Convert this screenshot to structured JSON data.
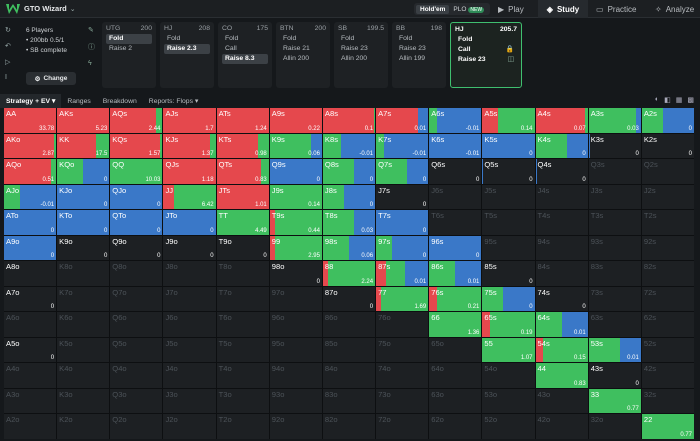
{
  "app": {
    "brand": "GTO Wizard",
    "game_options": [
      {
        "label": "Hold'em"
      },
      {
        "label": "PLO",
        "badge": "NEW"
      }
    ]
  },
  "nav": [
    {
      "label": "Play",
      "icon": "play-icon"
    },
    {
      "label": "Study",
      "icon": "study-icon"
    },
    {
      "label": "Practice",
      "icon": "practice-icon"
    },
    {
      "label": "Analyze",
      "icon": "analyze-icon"
    }
  ],
  "game_info": {
    "players": "6 Players",
    "stack": "• 200bb 0.5/1",
    "status": "• SB complete",
    "change": "Change"
  },
  "positions": [
    {
      "pos": "UTG",
      "stack": "200",
      "actions": [
        {
          "label": "Fold",
          "selected": true
        },
        {
          "label": "Raise 2",
          "selected": false
        }
      ]
    },
    {
      "pos": "HJ",
      "stack": "208",
      "actions": [
        {
          "label": "Fold",
          "selected": false
        },
        {
          "label": "Raise 2.3",
          "selected": true
        }
      ]
    },
    {
      "pos": "CO",
      "stack": "175",
      "actions": [
        {
          "label": "Fold",
          "selected": false
        },
        {
          "label": "Call",
          "selected": false
        },
        {
          "label": "Raise 8.3",
          "selected": true
        }
      ]
    },
    {
      "pos": "BTN",
      "stack": "200",
      "actions": [
        {
          "label": "Fold",
          "selected": false
        },
        {
          "label": "Raise 21",
          "selected": false
        },
        {
          "label": "Allin 200",
          "selected": false
        }
      ]
    },
    {
      "pos": "SB",
      "stack": "199.5",
      "actions": [
        {
          "label": "Fold",
          "selected": false
        },
        {
          "label": "Raise 23",
          "selected": false
        },
        {
          "label": "Allin 200",
          "selected": false
        }
      ]
    },
    {
      "pos": "BB",
      "stack": "198",
      "actions": [
        {
          "label": "Fold",
          "selected": false
        },
        {
          "label": "Raise 23",
          "selected": false
        },
        {
          "label": "Allin 199",
          "selected": false
        }
      ]
    },
    {
      "pos": "HJ",
      "stack": "205.7",
      "actions": [
        {
          "label": "Fold",
          "selected": false
        },
        {
          "label": "Call",
          "selected": false
        },
        {
          "label": "Raise 23",
          "selected": false
        }
      ]
    }
  ],
  "toolbar": {
    "tabs": [
      "Strategy + EV",
      "Ranges",
      "Breakdown",
      "Reports: Flops"
    ]
  },
  "colors": {
    "raise": "#e5484d",
    "call": "#3fbf5f",
    "fold": "#3a78c8",
    "bg": "#1d2023"
  },
  "matrix": [
    [
      {
        "h": "AA",
        "v": "33.78",
        "m": [
          1,
          0,
          0
        ]
      },
      {
        "h": "AKs",
        "v": "5.23",
        "m": [
          1,
          0,
          0
        ]
      },
      {
        "h": "AQs",
        "v": "2.44",
        "m": [
          0.88,
          0.12,
          0
        ]
      },
      {
        "h": "AJs",
        "v": "1.7",
        "m": [
          1,
          0,
          0
        ]
      },
      {
        "h": "ATs",
        "v": "1.24",
        "m": [
          1,
          0,
          0
        ]
      },
      {
        "h": "A9s",
        "v": "0.22",
        "m": [
          1,
          0,
          0
        ]
      },
      {
        "h": "A8s",
        "v": "0.1",
        "m": [
          0.98,
          0.02,
          0
        ]
      },
      {
        "h": "A7s",
        "v": "0.01",
        "m": [
          0.8,
          0,
          0.2
        ]
      },
      {
        "h": "A6s",
        "v": "-0.01",
        "m": [
          0,
          0.15,
          0.85
        ]
      },
      {
        "h": "A5s",
        "v": "0.14",
        "m": [
          0.3,
          0.7,
          0
        ]
      },
      {
        "h": "A4s",
        "v": "0.07",
        "m": [
          0.95,
          0.05,
          0
        ]
      },
      {
        "h": "A3s",
        "v": "0.03",
        "m": [
          0,
          0.9,
          0.1
        ]
      },
      {
        "h": "A2s",
        "v": "0",
        "m": [
          0,
          0.4,
          0.6
        ]
      }
    ],
    [
      {
        "h": "AKo",
        "v": "2.87",
        "m": [
          0.95,
          0.05,
          0
        ]
      },
      {
        "h": "KK",
        "v": "17.5",
        "m": [
          0.75,
          0.25,
          0
        ]
      },
      {
        "h": "KQs",
        "v": "1.57",
        "m": [
          0.95,
          0.05,
          0
        ]
      },
      {
        "h": "KJs",
        "v": "1.37",
        "m": [
          0.9,
          0.1,
          0
        ]
      },
      {
        "h": "KTs",
        "v": "0.98",
        "m": [
          0.8,
          0.2,
          0
        ]
      },
      {
        "h": "K9s",
        "v": "0.06",
        "m": [
          0,
          0.8,
          0.2
        ]
      },
      {
        "h": "K8s",
        "v": "-0.01",
        "m": [
          0,
          0.35,
          0.65
        ]
      },
      {
        "h": "K7s",
        "v": "-0.01",
        "m": [
          0,
          0.15,
          0.85
        ]
      },
      {
        "h": "K6s",
        "v": "-0.01",
        "m": [
          0,
          0,
          1
        ]
      },
      {
        "h": "K5s",
        "v": "0",
        "m": [
          0,
          0,
          1
        ]
      },
      {
        "h": "K4s",
        "v": "0",
        "m": [
          0,
          0.6,
          0.4
        ]
      },
      {
        "h": "K3s",
        "v": "0",
        "m": [
          0,
          0,
          0.02
        ]
      },
      {
        "h": "K2s",
        "v": "0",
        "m": [
          0,
          0,
          0
        ]
      }
    ],
    [
      {
        "h": "AQo",
        "v": "0.51",
        "m": [
          0.9,
          0.1,
          0
        ]
      },
      {
        "h": "KQo",
        "v": "0",
        "m": [
          0,
          0.5,
          0.5
        ]
      },
      {
        "h": "QQ",
        "v": "10.03",
        "m": [
          0,
          1,
          0
        ]
      },
      {
        "h": "QJs",
        "v": "1.18",
        "m": [
          1,
          0,
          0
        ]
      },
      {
        "h": "QTs",
        "v": "0.83",
        "m": [
          0.85,
          0.15,
          0
        ]
      },
      {
        "h": "Q9s",
        "v": "0",
        "m": [
          0,
          0,
          1
        ]
      },
      {
        "h": "Q8s",
        "v": "0",
        "m": [
          0,
          0.6,
          0.4
        ]
      },
      {
        "h": "Q7s",
        "v": "0",
        "m": [
          0,
          0.6,
          0.4
        ]
      },
      {
        "h": "Q6s",
        "v": "0",
        "m": [
          0,
          0,
          0
        ]
      },
      {
        "h": "Q5s",
        "v": "0",
        "m": [
          0,
          0,
          0.02
        ]
      },
      {
        "h": "Q4s",
        "v": "0",
        "m": [
          0,
          0,
          0.02
        ]
      },
      {
        "h": "Q3s",
        "v": "",
        "m": null
      },
      {
        "h": "Q2s",
        "v": "",
        "m": null
      }
    ],
    [
      {
        "h": "AJo",
        "v": "-0.01",
        "m": [
          0,
          0.3,
          0.7
        ]
      },
      {
        "h": "KJo",
        "v": "0",
        "m": [
          0,
          0,
          1
        ]
      },
      {
        "h": "QJo",
        "v": "0",
        "m": [
          0,
          0,
          1
        ]
      },
      {
        "h": "JJ",
        "v": "6.42",
        "m": [
          0.2,
          0.8,
          0
        ]
      },
      {
        "h": "JTs",
        "v": "1.01",
        "m": [
          1,
          0,
          0
        ]
      },
      {
        "h": "J9s",
        "v": "0.14",
        "m": [
          0,
          1,
          0
        ]
      },
      {
        "h": "J8s",
        "v": "0",
        "m": [
          0,
          0.4,
          0.6
        ]
      },
      {
        "h": "J7s",
        "v": "0",
        "m": [
          0,
          0,
          0
        ]
      },
      {
        "h": "J6s",
        "v": "",
        "m": null
      },
      {
        "h": "J5s",
        "v": "",
        "m": null
      },
      {
        "h": "J4s",
        "v": "",
        "m": null
      },
      {
        "h": "J3s",
        "v": "",
        "m": null
      },
      {
        "h": "J2s",
        "v": "",
        "m": null
      }
    ],
    [
      {
        "h": "ATo",
        "v": "0",
        "m": [
          0,
          0,
          1
        ]
      },
      {
        "h": "KTo",
        "v": "0",
        "m": [
          0,
          0,
          1
        ]
      },
      {
        "h": "QTo",
        "v": "0",
        "m": [
          0,
          0,
          1
        ]
      },
      {
        "h": "JTo",
        "v": "0",
        "m": [
          0,
          0,
          1
        ]
      },
      {
        "h": "TT",
        "v": "4.49",
        "m": [
          0,
          1,
          0
        ]
      },
      {
        "h": "T9s",
        "v": "0.44",
        "m": [
          0.1,
          0.9,
          0
        ]
      },
      {
        "h": "T8s",
        "v": "0.03",
        "m": [
          0,
          0.6,
          0.4
        ]
      },
      {
        "h": "T7s",
        "v": "0",
        "m": [
          0,
          0,
          1
        ]
      },
      {
        "h": "T6s",
        "v": "",
        "m": null
      },
      {
        "h": "T5s",
        "v": "",
        "m": null
      },
      {
        "h": "T4s",
        "v": "",
        "m": null
      },
      {
        "h": "T3s",
        "v": "",
        "m": null
      },
      {
        "h": "T2s",
        "v": "",
        "m": null
      }
    ],
    [
      {
        "h": "A9o",
        "v": "0",
        "m": [
          0,
          0,
          1
        ]
      },
      {
        "h": "K9o",
        "v": "0",
        "m": [
          0,
          0,
          0
        ]
      },
      {
        "h": "Q9o",
        "v": "0",
        "m": [
          0,
          0,
          0
        ]
      },
      {
        "h": "J9o",
        "v": "0",
        "m": [
          0,
          0,
          0
        ]
      },
      {
        "h": "T9o",
        "v": "0",
        "m": [
          0,
          0,
          0
        ]
      },
      {
        "h": "99",
        "v": "2.95",
        "m": [
          0.1,
          0.9,
          0
        ]
      },
      {
        "h": "98s",
        "v": "0.06",
        "m": [
          0,
          0.5,
          0.5
        ]
      },
      {
        "h": "97s",
        "v": "0",
        "m": [
          0,
          0.3,
          0.7
        ]
      },
      {
        "h": "96s",
        "v": "0",
        "m": [
          0,
          0,
          1
        ]
      },
      {
        "h": "95s",
        "v": "",
        "m": null
      },
      {
        "h": "94s",
        "v": "",
        "m": null
      },
      {
        "h": "93s",
        "v": "",
        "m": null
      },
      {
        "h": "92s",
        "v": "",
        "m": null
      }
    ],
    [
      {
        "h": "A8o",
        "v": "",
        "m": [
          0,
          0,
          0
        ]
      },
      {
        "h": "K8o",
        "v": "",
        "m": null
      },
      {
        "h": "Q8o",
        "v": "",
        "m": null
      },
      {
        "h": "J8o",
        "v": "",
        "m": null
      },
      {
        "h": "T8o",
        "v": "",
        "m": null
      },
      {
        "h": "98o",
        "v": "0",
        "m": [
          0,
          0,
          0
        ]
      },
      {
        "h": "88",
        "v": "2.24",
        "m": [
          0.1,
          0.9,
          0
        ]
      },
      {
        "h": "87s",
        "v": "0.01",
        "m": [
          0.2,
          0.35,
          0.45
        ]
      },
      {
        "h": "86s",
        "v": "0.01",
        "m": [
          0,
          0.5,
          0.5
        ]
      },
      {
        "h": "85s",
        "v": "0",
        "m": [
          0,
          0,
          0
        ]
      },
      {
        "h": "84s",
        "v": "",
        "m": null
      },
      {
        "h": "83s",
        "v": "",
        "m": null
      },
      {
        "h": "82s",
        "v": "",
        "m": null
      }
    ],
    [
      {
        "h": "A7o",
        "v": "0",
        "m": [
          0,
          0,
          0
        ]
      },
      {
        "h": "K7o",
        "v": "",
        "m": null
      },
      {
        "h": "Q7o",
        "v": "",
        "m": null
      },
      {
        "h": "J7o",
        "v": "",
        "m": null
      },
      {
        "h": "T7o",
        "v": "",
        "m": null
      },
      {
        "h": "97o",
        "v": "",
        "m": null
      },
      {
        "h": "87o",
        "v": "0",
        "m": [
          0,
          0,
          0
        ]
      },
      {
        "h": "77",
        "v": "1.69",
        "m": [
          0.1,
          0.9,
          0
        ]
      },
      {
        "h": "76s",
        "v": "0.21",
        "m": [
          0.15,
          0.85,
          0
        ]
      },
      {
        "h": "75s",
        "v": "0",
        "m": [
          0,
          0.4,
          0.6
        ]
      },
      {
        "h": "74s",
        "v": "0",
        "m": [
          0,
          0,
          0
        ]
      },
      {
        "h": "73s",
        "v": "",
        "m": null
      },
      {
        "h": "72s",
        "v": "",
        "m": null
      }
    ],
    [
      {
        "h": "A6o",
        "v": "",
        "m": null
      },
      {
        "h": "K6o",
        "v": "",
        "m": null
      },
      {
        "h": "Q6o",
        "v": "",
        "m": null
      },
      {
        "h": "J6o",
        "v": "",
        "m": null
      },
      {
        "h": "T6o",
        "v": "",
        "m": null
      },
      {
        "h": "96o",
        "v": "",
        "m": null
      },
      {
        "h": "86o",
        "v": "",
        "m": null
      },
      {
        "h": "76o",
        "v": "",
        "m": null
      },
      {
        "h": "66",
        "v": "1.36",
        "m": [
          0,
          1,
          0
        ]
      },
      {
        "h": "65s",
        "v": "0.19",
        "m": [
          0.15,
          0.85,
          0
        ]
      },
      {
        "h": "64s",
        "v": "0.01",
        "m": [
          0,
          0.5,
          0.5
        ]
      },
      {
        "h": "63s",
        "v": "",
        "m": null
      },
      {
        "h": "62s",
        "v": "",
        "m": null
      }
    ],
    [
      {
        "h": "A5o",
        "v": "0",
        "m": [
          0,
          0,
          0
        ]
      },
      {
        "h": "K5o",
        "v": "",
        "m": null
      },
      {
        "h": "Q5o",
        "v": "",
        "m": null
      },
      {
        "h": "J5o",
        "v": "",
        "m": null
      },
      {
        "h": "T5o",
        "v": "",
        "m": null
      },
      {
        "h": "95o",
        "v": "",
        "m": null
      },
      {
        "h": "85o",
        "v": "",
        "m": null
      },
      {
        "h": "75o",
        "v": "",
        "m": null
      },
      {
        "h": "65o",
        "v": "",
        "m": null
      },
      {
        "h": "55",
        "v": "1.07",
        "m": [
          0,
          1,
          0
        ]
      },
      {
        "h": "54s",
        "v": "0.15",
        "m": [
          0.15,
          0.85,
          0
        ]
      },
      {
        "h": "53s",
        "v": "0.01",
        "m": [
          0,
          0.6,
          0.4
        ]
      },
      {
        "h": "52s",
        "v": "",
        "m": null
      }
    ],
    [
      {
        "h": "A4o",
        "v": "",
        "m": null
      },
      {
        "h": "K4o",
        "v": "",
        "m": null
      },
      {
        "h": "Q4o",
        "v": "",
        "m": null
      },
      {
        "h": "J4o",
        "v": "",
        "m": null
      },
      {
        "h": "T4o",
        "v": "",
        "m": null
      },
      {
        "h": "94o",
        "v": "",
        "m": null
      },
      {
        "h": "84o",
        "v": "",
        "m": null
      },
      {
        "h": "74o",
        "v": "",
        "m": null
      },
      {
        "h": "64o",
        "v": "",
        "m": null
      },
      {
        "h": "54o",
        "v": "",
        "m": null
      },
      {
        "h": "44",
        "v": "0.83",
        "m": [
          0,
          1,
          0
        ]
      },
      {
        "h": "43s",
        "v": "0",
        "m": [
          0,
          0,
          0
        ]
      },
      {
        "h": "42s",
        "v": "",
        "m": null
      }
    ],
    [
      {
        "h": "A3o",
        "v": "",
        "m": null
      },
      {
        "h": "K3o",
        "v": "",
        "m": null
      },
      {
        "h": "Q3o",
        "v": "",
        "m": null
      },
      {
        "h": "J3o",
        "v": "",
        "m": null
      },
      {
        "h": "T3o",
        "v": "",
        "m": null
      },
      {
        "h": "93o",
        "v": "",
        "m": null
      },
      {
        "h": "83o",
        "v": "",
        "m": null
      },
      {
        "h": "73o",
        "v": "",
        "m": null
      },
      {
        "h": "63o",
        "v": "",
        "m": null
      },
      {
        "h": "53o",
        "v": "",
        "m": null
      },
      {
        "h": "43o",
        "v": "",
        "m": null
      },
      {
        "h": "33",
        "v": "0.77",
        "m": [
          0,
          1,
          0
        ]
      },
      {
        "h": "32s",
        "v": "",
        "m": null
      }
    ],
    [
      {
        "h": "A2o",
        "v": "",
        "m": null
      },
      {
        "h": "K2o",
        "v": "",
        "m": null
      },
      {
        "h": "Q2o",
        "v": "",
        "m": null
      },
      {
        "h": "J2o",
        "v": "",
        "m": null
      },
      {
        "h": "T2o",
        "v": "",
        "m": null
      },
      {
        "h": "92o",
        "v": "",
        "m": null
      },
      {
        "h": "82o",
        "v": "",
        "m": null
      },
      {
        "h": "72o",
        "v": "",
        "m": null
      },
      {
        "h": "62o",
        "v": "",
        "m": null
      },
      {
        "h": "52o",
        "v": "",
        "m": null
      },
      {
        "h": "42o",
        "v": "",
        "m": null
      },
      {
        "h": "32o",
        "v": "",
        "m": null
      },
      {
        "h": "22",
        "v": "0.77",
        "m": [
          0,
          1,
          0
        ]
      }
    ]
  ]
}
